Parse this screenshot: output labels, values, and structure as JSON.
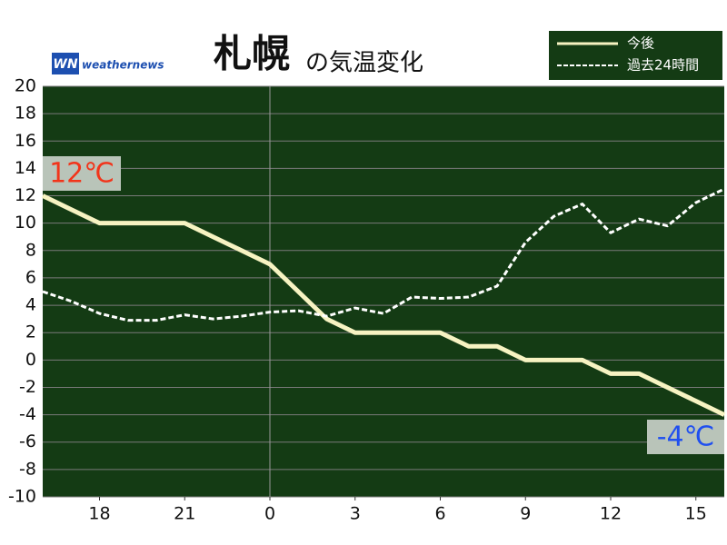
{
  "chart_data": {
    "type": "line",
    "title": "札幌",
    "subtitle": "の気温変化",
    "logo": {
      "mark": "WN",
      "text": "weathernews"
    },
    "x": [
      16,
      17,
      18,
      19,
      20,
      21,
      22,
      23,
      24,
      25,
      26,
      27,
      28,
      29,
      30,
      31,
      32,
      33,
      34,
      35,
      36,
      37,
      38,
      39,
      40
    ],
    "series": [
      {
        "name": "今後",
        "color": "#f7f3c2",
        "style": "solid",
        "values": [
          12,
          11,
          10,
          10,
          10,
          10,
          9,
          8,
          7,
          5,
          3,
          2,
          2,
          2,
          2,
          1,
          1,
          0,
          0,
          0,
          -1,
          -1,
          -2,
          -3,
          -4
        ]
      },
      {
        "name": "過去24時間",
        "color": "#ffffff",
        "style": "dashed",
        "values": [
          5,
          4.3,
          3.4,
          2.9,
          2.9,
          3.3,
          3.0,
          3.2,
          3.5,
          3.6,
          3.2,
          3.8,
          3.4,
          4.6,
          4.5,
          4.6,
          5.4,
          8.6,
          10.5,
          11.4,
          9.3,
          10.3,
          9.8,
          11.5,
          12.5
        ]
      }
    ],
    "xlim": [
      16,
      40
    ],
    "xticks": [
      18,
      21,
      {
        "value": 24,
        "label": "0"
      },
      {
        "value": 27,
        "label": "3"
      },
      {
        "value": 30,
        "label": "6"
      },
      {
        "value": 33,
        "label": "9"
      },
      {
        "value": 36,
        "label": "12"
      },
      {
        "value": 39,
        "label": "15"
      }
    ],
    "now_x": 24,
    "ylim": [
      -10,
      20
    ],
    "yticks": [
      -10,
      -8,
      -6,
      -4,
      -2,
      0,
      2,
      4,
      6,
      8,
      10,
      12,
      14,
      16,
      18,
      20
    ],
    "grid": true,
    "annotations": [
      {
        "text": "12℃",
        "color": "#f2341a"
      },
      {
        "text": "-4℃",
        "color": "#1f4ff0"
      }
    ]
  }
}
